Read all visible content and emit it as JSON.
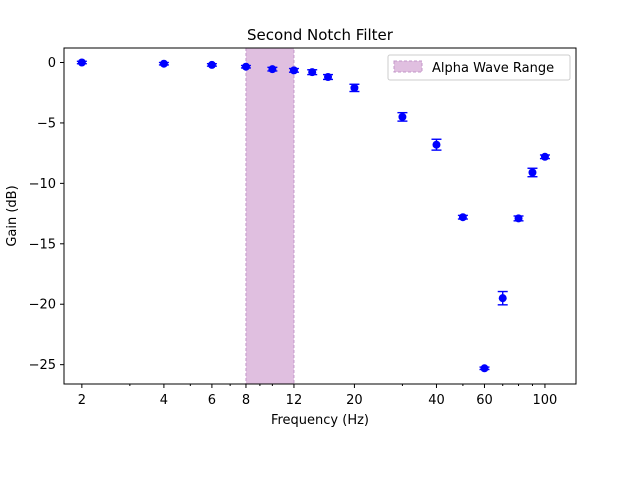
{
  "chart_data": {
    "type": "scatter",
    "title": "Second Notch Filter",
    "xlabel": "Frequency (Hz)",
    "ylabel": "Gain (dB)",
    "xscale": "log",
    "xlim": [
      1.72,
      130
    ],
    "ylim": [
      -26.6,
      1.2
    ],
    "grid": false,
    "legend_position": "top-right",
    "x_ticks": [
      2,
      4,
      6,
      8,
      12,
      20,
      40,
      60,
      100
    ],
    "x_tick_labels": [
      "2",
      "4",
      "6",
      "8",
      "12",
      "20",
      "40",
      "60",
      "100"
    ],
    "y_ticks": [
      0,
      -5,
      -10,
      -15,
      -20,
      -25
    ],
    "y_tick_labels": [
      "0",
      "−5",
      "−10",
      "−15",
      "−20",
      "−25"
    ],
    "span": {
      "label": "Alpha Wave Range",
      "x_start": 8,
      "x_end": 12,
      "color": "#e0bfe0",
      "edge_color": "#c397c9"
    },
    "series": [
      {
        "color": "#0000ff",
        "points": [
          {
            "x": 2,
            "y": 0.0,
            "err": 0.1
          },
          {
            "x": 4,
            "y": -0.1,
            "err": 0.1
          },
          {
            "x": 6,
            "y": -0.2,
            "err": 0.1
          },
          {
            "x": 8,
            "y": -0.35,
            "err": 0.1
          },
          {
            "x": 10,
            "y": -0.55,
            "err": 0.15
          },
          {
            "x": 12,
            "y": -0.65,
            "err": 0.15
          },
          {
            "x": 14,
            "y": -0.8,
            "err": 0.2
          },
          {
            "x": 16,
            "y": -1.2,
            "err": 0.2
          },
          {
            "x": 20,
            "y": -2.1,
            "err": 0.3
          },
          {
            "x": 30,
            "y": -4.5,
            "err": 0.35
          },
          {
            "x": 40,
            "y": -6.8,
            "err": 0.45
          },
          {
            "x": 50,
            "y": -12.8,
            "err": 0.15
          },
          {
            "x": 60,
            "y": -25.3,
            "err": 0.1
          },
          {
            "x": 70,
            "y": -19.5,
            "err": 0.55
          },
          {
            "x": 80,
            "y": -12.9,
            "err": 0.2
          },
          {
            "x": 90,
            "y": -9.1,
            "err": 0.35
          },
          {
            "x": 100,
            "y": -7.8,
            "err": 0.15
          }
        ]
      }
    ]
  }
}
